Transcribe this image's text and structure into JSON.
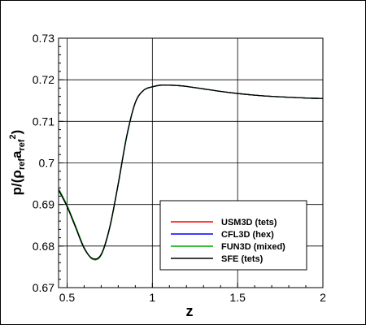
{
  "chart_data": {
    "type": "line",
    "xlabel": "z",
    "ylabel": {
      "p": "p/(",
      "rho": "ρ",
      "rho_sub": "ref",
      "a": "a",
      "a_sub": "ref",
      "exp": "2",
      "close": ")"
    },
    "xlim": [
      0.45,
      2.0
    ],
    "ylim": [
      0.67,
      0.73
    ],
    "xticks": [
      0.5,
      1,
      1.5,
      2
    ],
    "xtick_labels": [
      "0.5",
      "1",
      "1.5",
      "2"
    ],
    "yticks": [
      0.67,
      0.68,
      0.69,
      0.7,
      0.71,
      0.72,
      0.73
    ],
    "ytick_labels": [
      "0.67",
      "0.68",
      "0.69",
      "0.7",
      "0.71",
      "0.72",
      "0.73"
    ],
    "grid": true,
    "legend_position": "lower-right",
    "x": [
      0.45,
      0.5,
      0.55,
      0.6,
      0.65,
      0.7,
      0.75,
      0.8,
      0.85,
      0.9,
      0.95,
      1.0,
      1.05,
      1.1,
      1.15,
      1.2,
      1.3,
      1.4,
      1.5,
      1.6,
      1.7,
      1.8,
      1.9,
      2.0
    ],
    "series": [
      {
        "name": "USM3D (tets)",
        "color": "#ff0000",
        "values": [
          0.6935,
          0.6895,
          0.6845,
          0.6795,
          0.677,
          0.678,
          0.6845,
          0.695,
          0.7065,
          0.7145,
          0.7175,
          0.7183,
          0.7187,
          0.7187,
          0.7186,
          0.7184,
          0.7178,
          0.7172,
          0.7167,
          0.7163,
          0.716,
          0.7158,
          0.7156,
          0.7155
        ]
      },
      {
        "name": "CFL3D (hex)",
        "color": "#0000ff",
        "values": [
          0.6935,
          0.6895,
          0.6845,
          0.6795,
          0.677,
          0.678,
          0.6845,
          0.695,
          0.7065,
          0.7145,
          0.7175,
          0.7183,
          0.7187,
          0.7187,
          0.7186,
          0.7184,
          0.7178,
          0.7172,
          0.7167,
          0.7163,
          0.716,
          0.7158,
          0.7156,
          0.7155
        ]
      },
      {
        "name": "FUN3D (mixed)",
        "color": "#00aa00",
        "values": [
          0.6938,
          0.6898,
          0.6848,
          0.6797,
          0.6768,
          0.6778,
          0.6843,
          0.6948,
          0.7063,
          0.7145,
          0.7175,
          0.7183,
          0.7187,
          0.7187,
          0.7186,
          0.7184,
          0.7178,
          0.7172,
          0.7167,
          0.7163,
          0.716,
          0.7158,
          0.7156,
          0.7155
        ]
      },
      {
        "name": "SFE (tets)",
        "color": "#000000",
        "values": [
          0.6935,
          0.6895,
          0.6845,
          0.6795,
          0.677,
          0.678,
          0.6845,
          0.695,
          0.7065,
          0.7145,
          0.7175,
          0.7183,
          0.7187,
          0.7187,
          0.7186,
          0.7184,
          0.7178,
          0.7172,
          0.7167,
          0.7163,
          0.716,
          0.7158,
          0.7156,
          0.7155
        ]
      }
    ]
  }
}
